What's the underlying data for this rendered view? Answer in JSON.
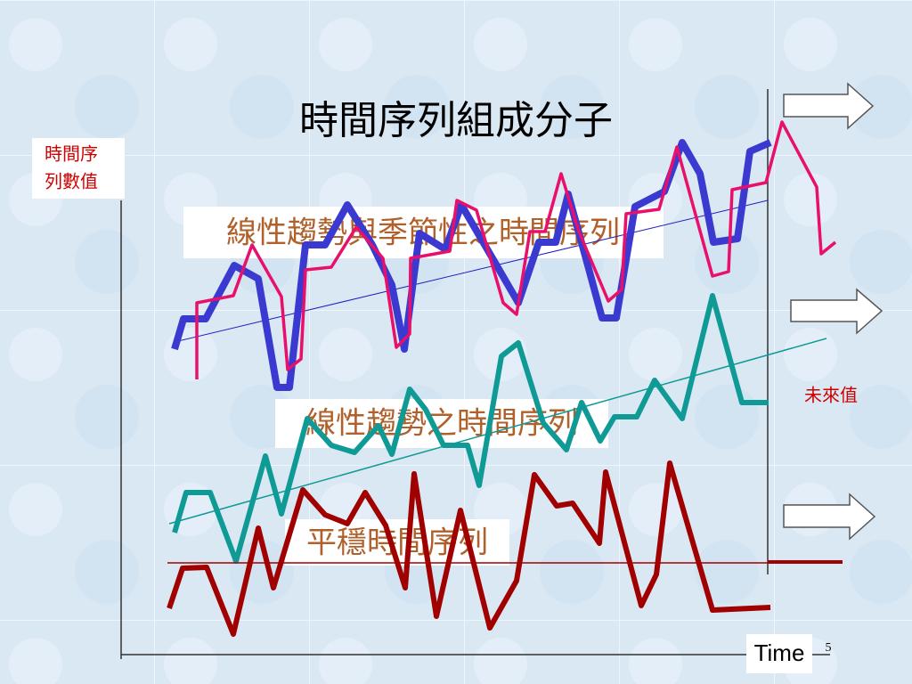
{
  "title": "時間序列組成分子",
  "y_axis_label": [
    "時間序",
    "列數值"
  ],
  "series_labels": [
    "線性趨勢與季節性之時間序列",
    "線性趨勢之時間序列",
    "平穩時間序列"
  ],
  "future_label": "未來值",
  "x_axis_label": "Time",
  "slide_number": "5"
}
